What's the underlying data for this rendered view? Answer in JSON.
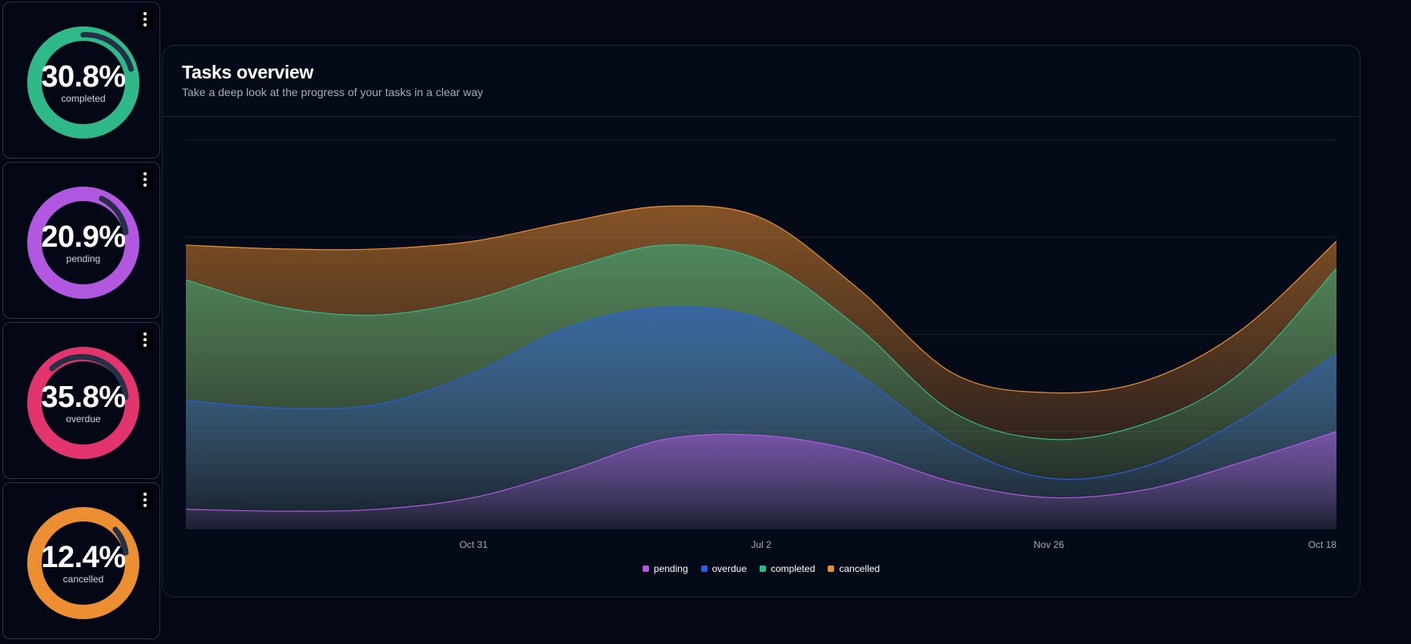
{
  "stats": [
    {
      "value": "30.8%",
      "label": "completed",
      "color": "#2fb989",
      "percent": 30.8
    },
    {
      "value": "20.9%",
      "label": "pending",
      "color": "#b258e0",
      "percent": 20.9
    },
    {
      "value": "35.8%",
      "label": "overdue",
      "color": "#e2356e",
      "percent": 35.8
    },
    {
      "value": "12.4%",
      "label": "cancelled",
      "color": "#ec8e32",
      "percent": 12.4
    }
  ],
  "panel": {
    "title": "Tasks overview",
    "subtitle": "Take a deep look at the progress of your tasks in a clear way"
  },
  "chart_data": {
    "type": "area",
    "stacked": true,
    "x_ticks": [
      "Oct 31",
      "Jul 2",
      "Nov 26",
      "Oct 18"
    ],
    "ylim": [
      0,
      100
    ],
    "grid": true,
    "legend_position": "bottom",
    "series": [
      {
        "name": "pending",
        "color": "#b258e0",
        "values": [
          5,
          4.5,
          5,
          8,
          15,
          23,
          24,
          20,
          12,
          8,
          10,
          17,
          25
        ]
      },
      {
        "name": "overdue",
        "color": "#2a5ce0",
        "values": [
          33,
          31,
          32,
          40,
          52,
          57,
          54,
          40,
          22,
          13,
          16,
          28,
          45
        ]
      },
      {
        "name": "completed",
        "color": "#2fb989",
        "values": [
          64,
          57,
          55,
          59,
          67,
          73,
          69,
          52,
          30,
          23,
          27,
          40,
          67
        ]
      },
      {
        "name": "cancelled",
        "color": "#ec8e32",
        "values": [
          73,
          72,
          72,
          74,
          79,
          83,
          80,
          62,
          40,
          35,
          38,
          51,
          74
        ]
      }
    ]
  }
}
